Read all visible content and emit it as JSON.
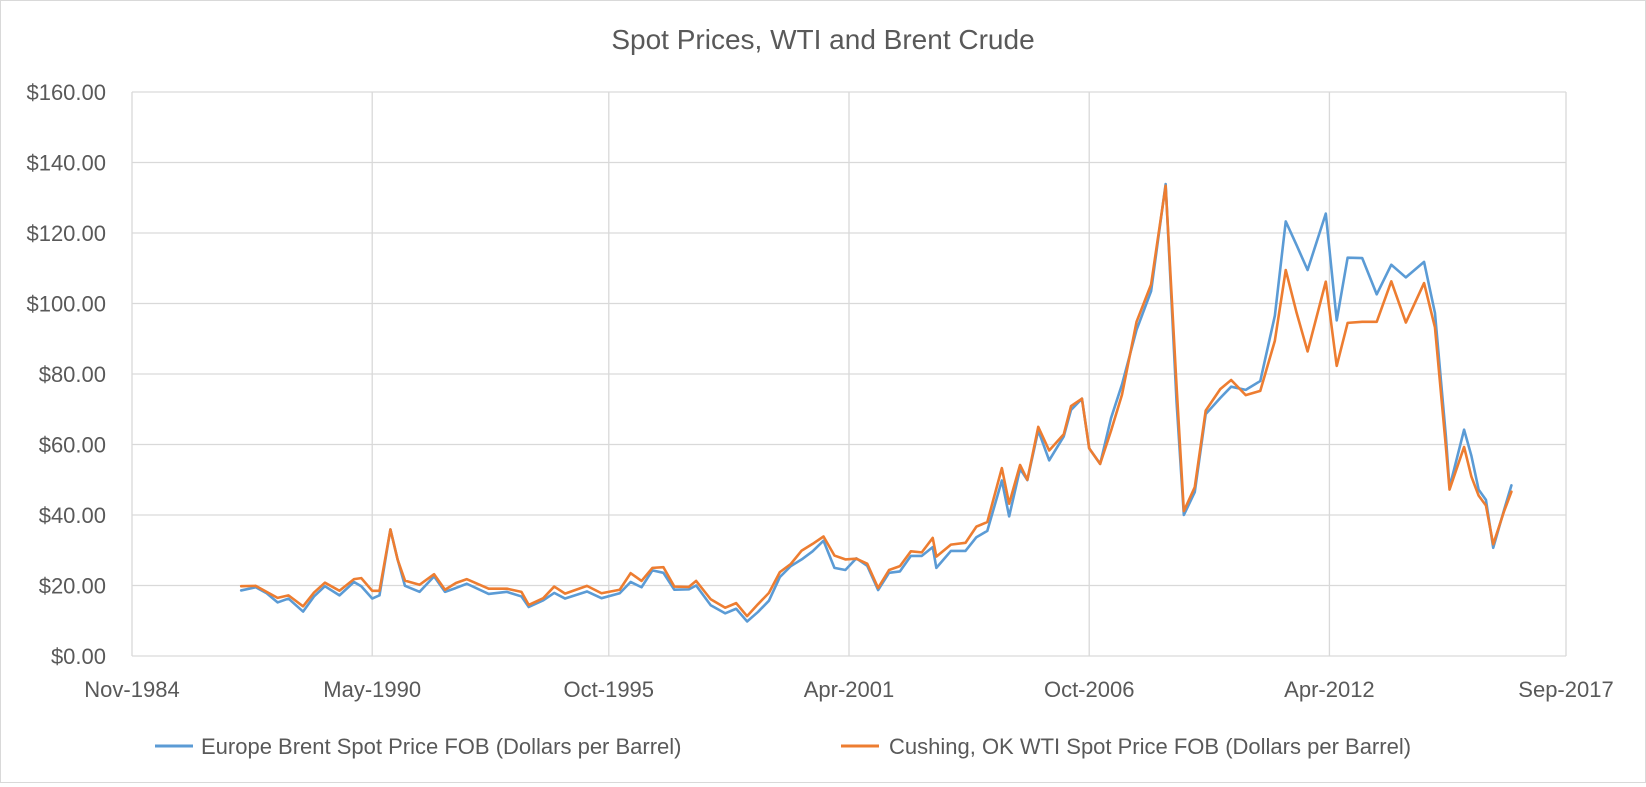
{
  "chart_data": {
    "type": "line",
    "title": "Spot Prices, WTI and Brent Crude",
    "xlabel": "",
    "ylabel": "",
    "x_axis": {
      "ticks": [
        "Nov-1984",
        "May-1990",
        "Oct-1995",
        "Apr-2001",
        "Oct-2006",
        "Apr-2012",
        "Sep-2017"
      ],
      "range": [
        "1984-11",
        "2017-09"
      ]
    },
    "y_axis": {
      "ticks": [
        "$0.00",
        "$20.00",
        "$40.00",
        "$60.00",
        "$80.00",
        "$100.00",
        "$120.00",
        "$140.00",
        "$160.00"
      ],
      "range": [
        0,
        160
      ]
    },
    "grid": true,
    "legend_position": "bottom",
    "series": [
      {
        "name": "Europe Brent Spot Price FOB (Dollars per Barrel)",
        "color": "#5B9BD5",
        "points": [
          [
            "1987-05",
            18.6
          ],
          [
            "1987-09",
            19.5
          ],
          [
            "1987-12",
            17.8
          ],
          [
            "1988-03",
            15.2
          ],
          [
            "1988-06",
            16.3
          ],
          [
            "1988-10",
            12.6
          ],
          [
            "1989-01",
            16.9
          ],
          [
            "1989-04",
            19.8
          ],
          [
            "1989-08",
            17.2
          ],
          [
            "1989-12",
            21.0
          ],
          [
            "1990-02",
            19.8
          ],
          [
            "1990-05",
            16.3
          ],
          [
            "1990-07",
            17.2
          ],
          [
            "1990-10",
            35.9
          ],
          [
            "1990-12",
            27.3
          ],
          [
            "1991-02",
            19.9
          ],
          [
            "1991-06",
            18.2
          ],
          [
            "1991-10",
            22.6
          ],
          [
            "1992-01",
            18.2
          ],
          [
            "1992-04",
            19.3
          ],
          [
            "1992-07",
            20.5
          ],
          [
            "1993-01",
            17.6
          ],
          [
            "1993-06",
            18.2
          ],
          [
            "1993-10",
            16.9
          ],
          [
            "1993-12",
            13.9
          ],
          [
            "1994-04",
            15.8
          ],
          [
            "1994-07",
            17.9
          ],
          [
            "1994-10",
            16.3
          ],
          [
            "1995-04",
            18.3
          ],
          [
            "1995-08",
            16.4
          ],
          [
            "1996-01",
            17.8
          ],
          [
            "1996-04",
            21.0
          ],
          [
            "1996-07",
            19.5
          ],
          [
            "1996-10",
            24.3
          ],
          [
            "1997-01",
            23.6
          ],
          [
            "1997-04",
            18.8
          ],
          [
            "1997-08",
            18.9
          ],
          [
            "1997-10",
            20.0
          ],
          [
            "1998-02",
            14.4
          ],
          [
            "1998-06",
            12.1
          ],
          [
            "1998-09",
            13.4
          ],
          [
            "1998-12",
            9.8
          ],
          [
            "1999-03",
            12.5
          ],
          [
            "1999-06",
            15.7
          ],
          [
            "1999-09",
            22.4
          ],
          [
            "1999-12",
            25.5
          ],
          [
            "2000-03",
            27.4
          ],
          [
            "2000-06",
            29.7
          ],
          [
            "2000-09",
            32.7
          ],
          [
            "2000-12",
            25.0
          ],
          [
            "2001-03",
            24.4
          ],
          [
            "2001-06",
            27.7
          ],
          [
            "2001-09",
            25.6
          ],
          [
            "2001-12",
            18.7
          ],
          [
            "2002-03",
            23.6
          ],
          [
            "2002-06",
            24.0
          ],
          [
            "2002-09",
            28.4
          ],
          [
            "2002-12",
            28.4
          ],
          [
            "2003-03",
            30.9
          ],
          [
            "2003-04",
            25.0
          ],
          [
            "2003-08",
            29.8
          ],
          [
            "2003-12",
            29.8
          ],
          [
            "2004-03",
            33.7
          ],
          [
            "2004-06",
            35.5
          ],
          [
            "2004-10",
            49.8
          ],
          [
            "2004-12",
            39.6
          ],
          [
            "2005-03",
            53.1
          ],
          [
            "2005-05",
            49.9
          ],
          [
            "2005-08",
            64.0
          ],
          [
            "2005-11",
            55.5
          ],
          [
            "2006-03",
            62.3
          ],
          [
            "2006-05",
            69.8
          ],
          [
            "2006-08",
            73.0
          ],
          [
            "2006-10",
            58.9
          ],
          [
            "2007-01",
            54.5
          ],
          [
            "2007-04",
            67.5
          ],
          [
            "2007-07",
            77.0
          ],
          [
            "2007-11",
            92.5
          ],
          [
            "2008-03",
            103.5
          ],
          [
            "2008-07",
            133.9
          ],
          [
            "2008-10",
            72.0
          ],
          [
            "2008-12",
            40.0
          ],
          [
            "2009-03",
            46.5
          ],
          [
            "2009-06",
            68.6
          ],
          [
            "2009-10",
            73.2
          ],
          [
            "2010-01",
            76.4
          ],
          [
            "2010-05",
            75.5
          ],
          [
            "2010-09",
            78.0
          ],
          [
            "2011-01",
            96.5
          ],
          [
            "2011-04",
            123.3
          ],
          [
            "2011-07",
            116.5
          ],
          [
            "2011-10",
            109.5
          ],
          [
            "2012-03",
            125.5
          ],
          [
            "2012-06",
            95.2
          ],
          [
            "2012-09",
            113.0
          ],
          [
            "2013-01",
            112.9
          ],
          [
            "2013-05",
            102.6
          ],
          [
            "2013-09",
            111.0
          ],
          [
            "2014-01",
            107.4
          ],
          [
            "2014-06",
            111.8
          ],
          [
            "2014-09",
            97.3
          ],
          [
            "2014-12",
            62.3
          ],
          [
            "2015-01",
            47.8
          ],
          [
            "2015-05",
            64.2
          ],
          [
            "2015-07",
            56.8
          ],
          [
            "2015-09",
            47.2
          ],
          [
            "2015-11",
            44.3
          ],
          [
            "2016-01",
            30.7
          ],
          [
            "2016-04",
            41.5
          ],
          [
            "2016-06",
            48.4
          ]
        ]
      },
      {
        "name": "Cushing, OK WTI Spot Price FOB (Dollars per Barrel)",
        "color": "#ED7D31",
        "points": [
          [
            "1987-05",
            19.8
          ],
          [
            "1987-09",
            19.9
          ],
          [
            "1987-12",
            18.2
          ],
          [
            "1988-03",
            16.5
          ],
          [
            "1988-06",
            17.2
          ],
          [
            "1988-10",
            14.1
          ],
          [
            "1989-01",
            18.0
          ],
          [
            "1989-04",
            20.8
          ],
          [
            "1989-08",
            18.5
          ],
          [
            "1989-12",
            21.8
          ],
          [
            "1990-02",
            22.1
          ],
          [
            "1990-05",
            18.5
          ],
          [
            "1990-07",
            18.5
          ],
          [
            "1990-10",
            35.9
          ],
          [
            "1990-12",
            27.3
          ],
          [
            "1991-02",
            21.4
          ],
          [
            "1991-06",
            20.2
          ],
          [
            "1991-10",
            23.2
          ],
          [
            "1992-01",
            18.8
          ],
          [
            "1992-04",
            20.7
          ],
          [
            "1992-07",
            21.8
          ],
          [
            "1993-01",
            19.1
          ],
          [
            "1993-06",
            19.1
          ],
          [
            "1993-10",
            18.2
          ],
          [
            "1993-12",
            14.5
          ],
          [
            "1994-04",
            16.4
          ],
          [
            "1994-07",
            19.7
          ],
          [
            "1994-10",
            17.7
          ],
          [
            "1995-04",
            19.9
          ],
          [
            "1995-08",
            17.8
          ],
          [
            "1996-01",
            18.8
          ],
          [
            "1996-04",
            23.5
          ],
          [
            "1996-07",
            21.3
          ],
          [
            "1996-10",
            25.0
          ],
          [
            "1997-01",
            25.2
          ],
          [
            "1997-04",
            19.7
          ],
          [
            "1997-08",
            19.6
          ],
          [
            "1997-10",
            21.3
          ],
          [
            "1998-02",
            16.1
          ],
          [
            "1998-06",
            13.7
          ],
          [
            "1998-09",
            15.0
          ],
          [
            "1998-12",
            11.3
          ],
          [
            "1999-03",
            14.7
          ],
          [
            "1999-06",
            17.9
          ],
          [
            "1999-09",
            23.8
          ],
          [
            "1999-12",
            26.1
          ],
          [
            "2000-03",
            29.9
          ],
          [
            "2000-06",
            31.8
          ],
          [
            "2000-09",
            33.9
          ],
          [
            "2000-12",
            28.5
          ],
          [
            "2001-03",
            27.4
          ],
          [
            "2001-06",
            27.6
          ],
          [
            "2001-09",
            26.2
          ],
          [
            "2001-12",
            19.3
          ],
          [
            "2002-03",
            24.4
          ],
          [
            "2002-06",
            25.5
          ],
          [
            "2002-09",
            29.7
          ],
          [
            "2002-12",
            29.4
          ],
          [
            "2003-03",
            33.5
          ],
          [
            "2003-04",
            28.2
          ],
          [
            "2003-08",
            31.6
          ],
          [
            "2003-12",
            32.1
          ],
          [
            "2004-03",
            36.7
          ],
          [
            "2004-06",
            38.0
          ],
          [
            "2004-10",
            53.3
          ],
          [
            "2004-12",
            43.2
          ],
          [
            "2005-03",
            54.2
          ],
          [
            "2005-05",
            50.0
          ],
          [
            "2005-08",
            65.0
          ],
          [
            "2005-11",
            58.3
          ],
          [
            "2006-03",
            62.9
          ],
          [
            "2006-05",
            70.9
          ],
          [
            "2006-08",
            73.0
          ],
          [
            "2006-10",
            58.9
          ],
          [
            "2007-01",
            54.5
          ],
          [
            "2007-04",
            63.9
          ],
          [
            "2007-07",
            74.1
          ],
          [
            "2007-11",
            94.8
          ],
          [
            "2008-03",
            105.4
          ],
          [
            "2008-07",
            133.4
          ],
          [
            "2008-10",
            76.6
          ],
          [
            "2008-12",
            41.1
          ],
          [
            "2009-03",
            47.9
          ],
          [
            "2009-06",
            69.6
          ],
          [
            "2009-10",
            75.7
          ],
          [
            "2010-01",
            78.3
          ],
          [
            "2010-05",
            74.0
          ],
          [
            "2010-09",
            75.2
          ],
          [
            "2011-01",
            89.4
          ],
          [
            "2011-04",
            109.5
          ],
          [
            "2011-07",
            97.3
          ],
          [
            "2011-10",
            86.4
          ],
          [
            "2012-03",
            106.2
          ],
          [
            "2012-06",
            82.3
          ],
          [
            "2012-09",
            94.5
          ],
          [
            "2013-01",
            94.8
          ],
          [
            "2013-05",
            94.8
          ],
          [
            "2013-09",
            106.3
          ],
          [
            "2014-01",
            94.6
          ],
          [
            "2014-06",
            105.8
          ],
          [
            "2014-09",
            93.2
          ],
          [
            "2014-12",
            59.3
          ],
          [
            "2015-01",
            47.2
          ],
          [
            "2015-05",
            59.3
          ],
          [
            "2015-07",
            50.9
          ],
          [
            "2015-09",
            45.5
          ],
          [
            "2015-11",
            42.7
          ],
          [
            "2016-01",
            31.7
          ],
          [
            "2016-04",
            41.1
          ],
          [
            "2016-06",
            46.6
          ]
        ]
      }
    ]
  }
}
